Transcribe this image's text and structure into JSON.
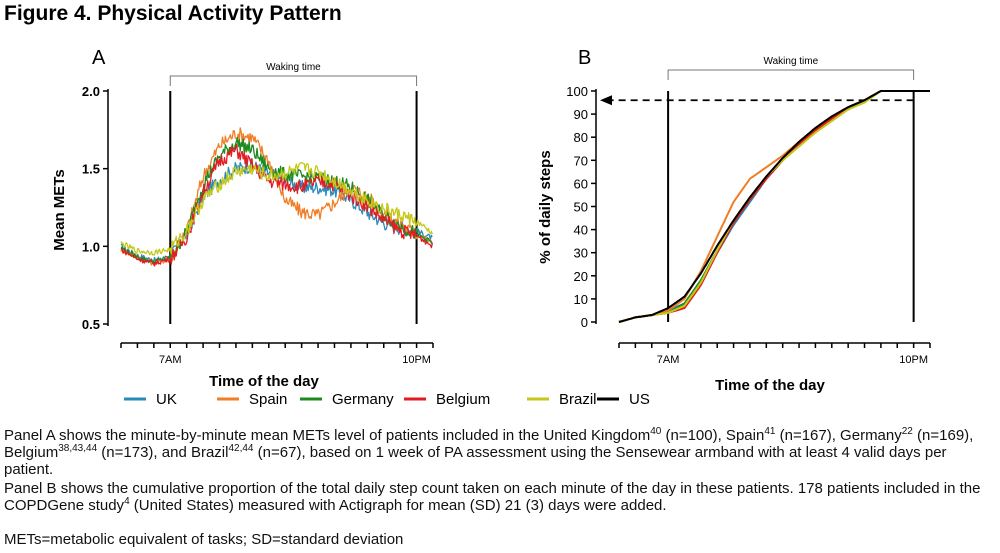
{
  "figure_title": "Figure 4. Physical Activity Pattern",
  "chart_data": [
    {
      "panel": "A",
      "type": "line",
      "title": "",
      "xlabel": "Time of the day",
      "ylabel": "Mean METs",
      "ylim": [
        0.5,
        2.0
      ],
      "yticks": [
        "0.5",
        "1.0",
        "1.5",
        "2.0"
      ],
      "x_range_hours": [
        4,
        23
      ],
      "x_tick_labels": [
        {
          "hour": 7,
          "label": "7AM"
        },
        {
          "hour": 22,
          "label": "10PM"
        }
      ],
      "annotation": "Waking time",
      "annotation_span_hours": [
        7,
        22
      ],
      "grid": false,
      "x": [
        4,
        5,
        6,
        7,
        8,
        9,
        10,
        11,
        12,
        13,
        14,
        15,
        16,
        17,
        18,
        19,
        20,
        21,
        22,
        23
      ],
      "series": [
        {
          "name": "UK",
          "values": [
            1.0,
            0.94,
            0.91,
            0.93,
            1.08,
            1.32,
            1.43,
            1.5,
            1.52,
            1.47,
            1.42,
            1.38,
            1.38,
            1.36,
            1.3,
            1.22,
            1.15,
            1.12,
            1.1,
            1.05
          ]
        },
        {
          "name": "Spain",
          "values": [
            0.98,
            0.93,
            0.89,
            0.92,
            1.1,
            1.45,
            1.65,
            1.73,
            1.7,
            1.55,
            1.3,
            1.22,
            1.2,
            1.28,
            1.38,
            1.32,
            1.22,
            1.14,
            1.08,
            1.02
          ]
        },
        {
          "name": "Germany",
          "values": [
            0.99,
            0.93,
            0.9,
            0.93,
            1.09,
            1.4,
            1.58,
            1.67,
            1.62,
            1.5,
            1.46,
            1.45,
            1.44,
            1.42,
            1.38,
            1.3,
            1.2,
            1.13,
            1.08,
            1.02
          ]
        },
        {
          "name": "Belgium",
          "values": [
            0.98,
            0.92,
            0.89,
            0.92,
            1.06,
            1.35,
            1.55,
            1.62,
            1.52,
            1.42,
            1.4,
            1.38,
            1.42,
            1.4,
            1.33,
            1.26,
            1.17,
            1.1,
            1.07,
            1.0
          ]
        },
        {
          "name": "Brazil",
          "values": [
            1.02,
            0.97,
            0.96,
            0.98,
            1.1,
            1.3,
            1.4,
            1.48,
            1.5,
            1.45,
            1.47,
            1.5,
            1.48,
            1.42,
            1.36,
            1.3,
            1.24,
            1.2,
            1.16,
            1.08
          ]
        }
      ]
    },
    {
      "panel": "B",
      "type": "line",
      "title": "",
      "xlabel": "Time of the day",
      "ylabel": "% of daily steps",
      "ylim": [
        0,
        100
      ],
      "yticks": [
        "0",
        "10",
        "20",
        "30",
        "40",
        "50",
        "60",
        "70",
        "80",
        "90",
        "100"
      ],
      "x_range_hours": [
        4,
        23
      ],
      "x_tick_labels": [
        {
          "hour": 7,
          "label": "7AM"
        },
        {
          "hour": 22,
          "label": "10PM"
        }
      ],
      "annotation": "Waking time",
      "annotation_span_hours": [
        7,
        22
      ],
      "arrow_at_percent": 96,
      "grid": false,
      "x": [
        4,
        5,
        6,
        7,
        8,
        9,
        10,
        11,
        12,
        13,
        14,
        15,
        16,
        17,
        18,
        19,
        20,
        21,
        22,
        23
      ],
      "series": [
        {
          "name": "UK",
          "values": [
            0,
            2,
            3,
            5,
            8,
            18,
            30,
            42,
            52,
            62,
            70,
            77,
            83,
            88,
            92,
            96,
            100,
            100,
            100,
            100
          ]
        },
        {
          "name": "Spain",
          "values": [
            0,
            2,
            3,
            5,
            10,
            22,
            37,
            52,
            62,
            67,
            72,
            78,
            84,
            89,
            93,
            96,
            100,
            100,
            100,
            100
          ]
        },
        {
          "name": "Germany",
          "values": [
            0,
            2,
            3,
            4,
            8,
            18,
            31,
            43,
            53,
            62,
            70,
            77,
            83,
            88,
            93,
            96,
            100,
            100,
            100,
            100
          ]
        },
        {
          "name": "Belgium",
          "values": [
            0,
            2,
            3,
            4,
            6,
            16,
            30,
            43,
            53,
            62,
            70,
            77,
            83,
            88,
            93,
            96,
            100,
            100,
            100,
            100
          ]
        },
        {
          "name": "Brazil",
          "values": [
            0,
            2,
            3,
            4,
            7,
            17,
            31,
            44,
            54,
            63,
            70,
            76,
            82,
            87,
            92,
            95,
            100,
            100,
            100,
            100
          ]
        },
        {
          "name": "US",
          "values": [
            0,
            2,
            3,
            6,
            11,
            21,
            33,
            44,
            54,
            63,
            71,
            78,
            84,
            89,
            93,
            96,
            100,
            100,
            100,
            100
          ]
        }
      ]
    }
  ],
  "legend": [
    {
      "name": "UK",
      "color": "#2a8ab8"
    },
    {
      "name": "Spain",
      "color": "#f07e26"
    },
    {
      "name": "Germany",
      "color": "#1c8a1c"
    },
    {
      "name": "Belgium",
      "color": "#e31b23"
    },
    {
      "name": "Brazil",
      "color": "#c4c81a"
    },
    {
      "name": "US",
      "color": "#000000"
    }
  ],
  "captions": {
    "panel_a": {
      "t1": "Panel A shows the minute-by-minute mean METs level of patients included in the United Kingdom",
      "s1": "40",
      "t2": " (n=100), Spain",
      "s2": "41",
      "t3": " (n=167), Germany",
      "s3": "22",
      "t4": " (n=169), Belgium",
      "s4": "38,43,44",
      "t5": " (n=173), and Brazil",
      "s5": "42,44",
      "t6": " (n=67), based on 1 week of PA assessment using the Sensewear armband with at least 4 valid days per patient."
    },
    "panel_b": {
      "t1": "Panel B shows the cumulative proportion of the total daily step count taken on each minute of the day in these patients. 178 patients included in the COPDGene study",
      "s1": "4",
      "t2": " (United States) measured with Actigraph for mean (SD) 21 (3) days were added."
    },
    "abbreviations": "METs=metabolic equivalent of tasks; SD=standard deviation"
  }
}
